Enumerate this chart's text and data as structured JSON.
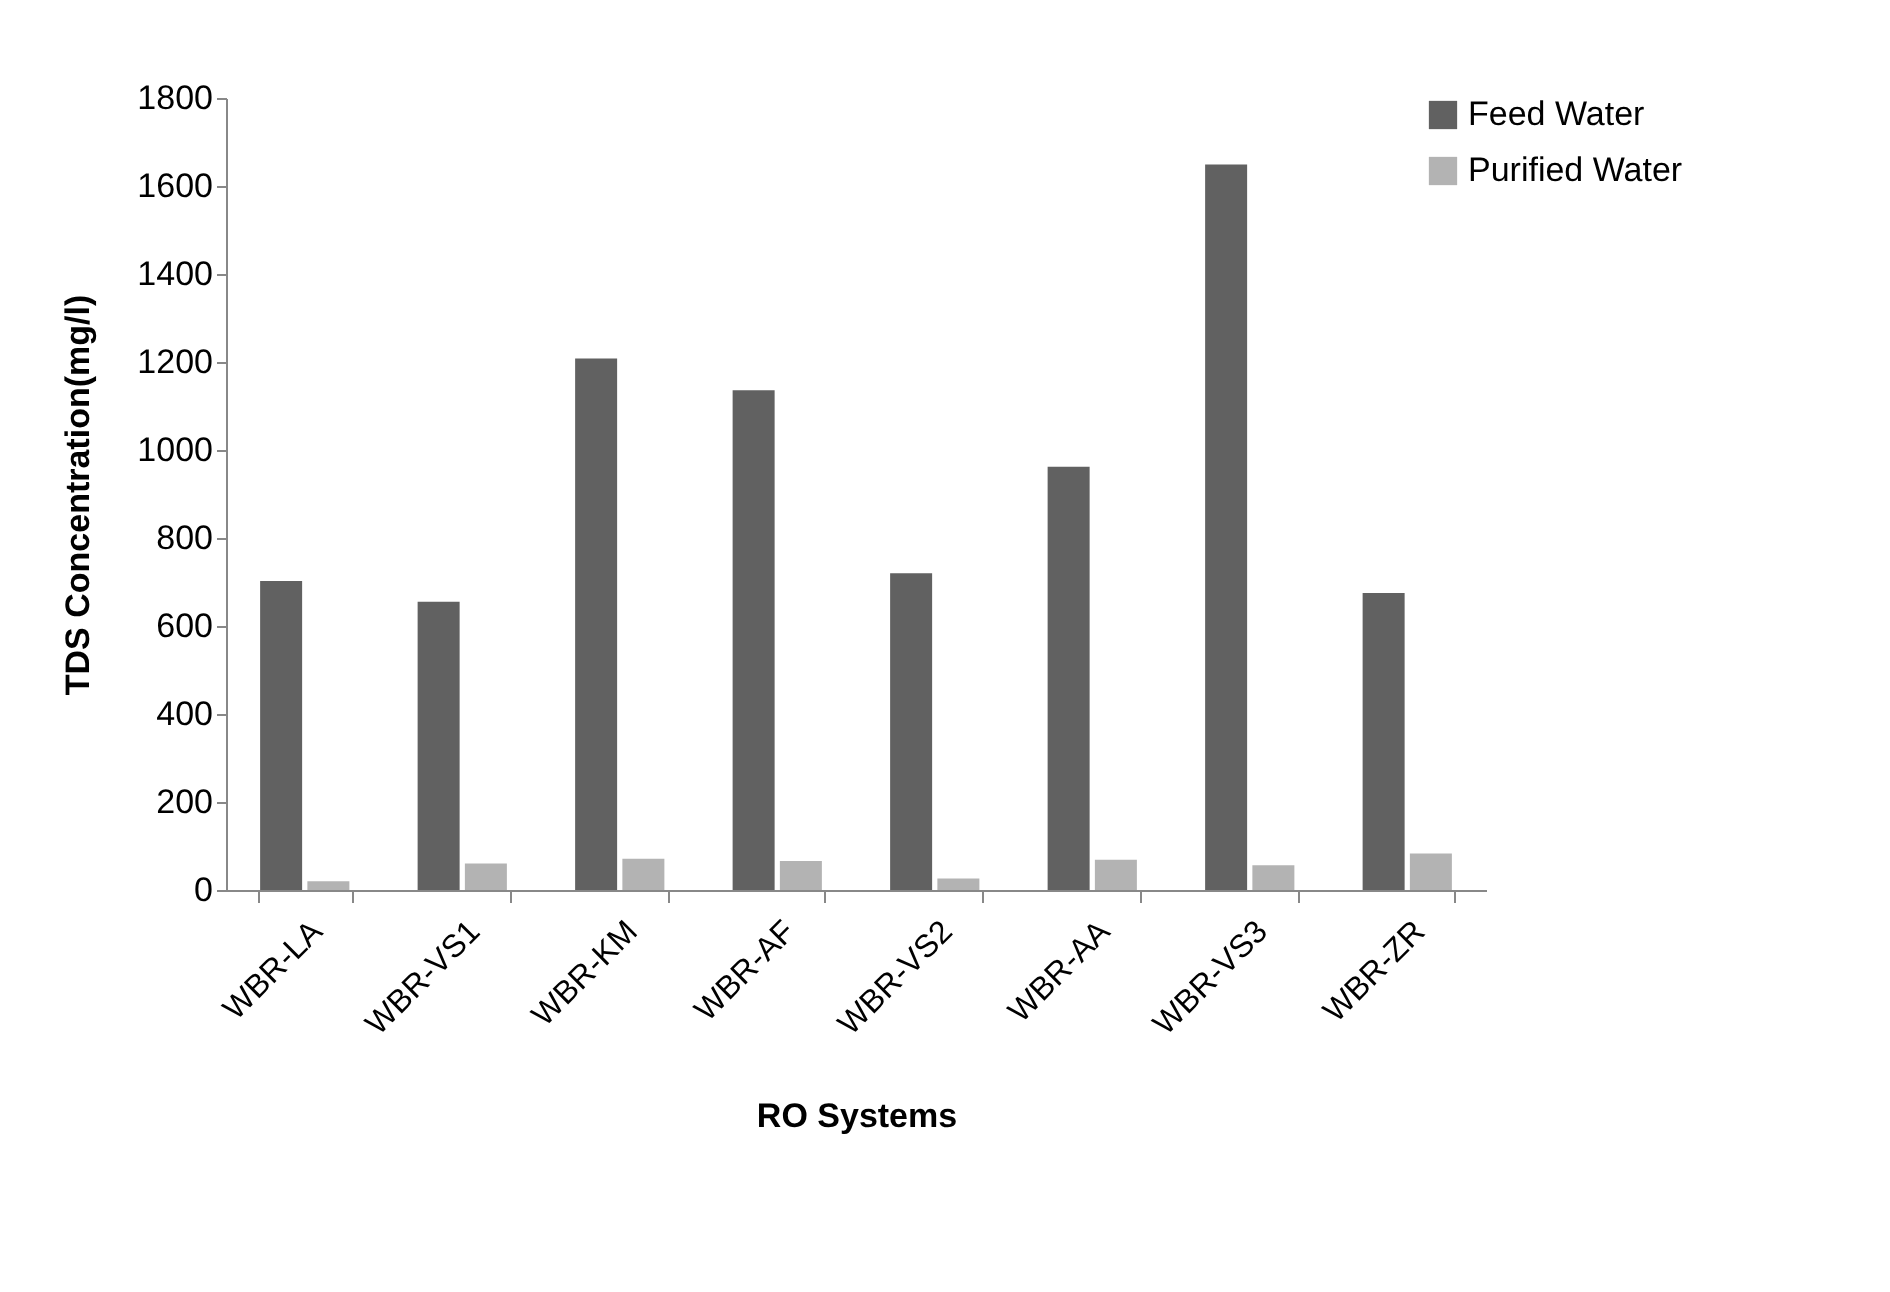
{
  "chart_data": {
    "type": "bar",
    "xlabel": "RO Systems",
    "ylabel": "TDS Concentration(mg/l)",
    "categories": [
      "WBR-LA",
      "WBR-VS1",
      "WBR-KM",
      "WBR-AF",
      "WBR-VS2",
      "WBR-AA",
      "WBR-VS3",
      "WBR-ZR"
    ],
    "series": [
      {
        "name": "Feed Water",
        "color": "#616161",
        "values": [
          702,
          655,
          1208,
          1136,
          720,
          962,
          1649,
          675
        ]
      },
      {
        "name": "Purified Water",
        "color": "#b3b3b3",
        "values": [
          20,
          60,
          71,
          66,
          26,
          69,
          56,
          83
        ]
      }
    ],
    "ylim": [
      0,
      1800
    ],
    "yticks": [
      0,
      200,
      400,
      600,
      800,
      1000,
      1200,
      1400,
      1600,
      1800
    ],
    "grid": false,
    "legend": "top right"
  }
}
